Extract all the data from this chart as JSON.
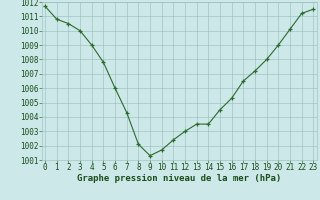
{
  "x": [
    0,
    1,
    2,
    3,
    4,
    5,
    6,
    7,
    8,
    9,
    10,
    11,
    12,
    13,
    14,
    15,
    16,
    17,
    18,
    19,
    20,
    21,
    22,
    23
  ],
  "y": [
    1011.7,
    1010.8,
    1010.5,
    1010.0,
    1009.0,
    1007.8,
    1006.0,
    1004.3,
    1002.1,
    1001.3,
    1001.7,
    1002.4,
    1003.0,
    1003.5,
    1003.5,
    1004.5,
    1005.3,
    1006.5,
    1007.2,
    1008.0,
    1009.0,
    1010.1,
    1011.2,
    1011.5
  ],
  "line_color": "#2d6a2d",
  "marker": "+",
  "marker_color": "#2d6a2d",
  "bg_color": "#cce8e8",
  "grid_color": "#99bbbb",
  "xlabel": "Graphe pression niveau de la mer (hPa)",
  "xlabel_color": "#1a4d1a",
  "tick_color": "#1a4d1a",
  "ylim": [
    1001,
    1012
  ],
  "yticks": [
    1001,
    1002,
    1003,
    1004,
    1005,
    1006,
    1007,
    1008,
    1009,
    1010,
    1011,
    1012
  ],
  "xticks": [
    0,
    1,
    2,
    3,
    4,
    5,
    6,
    7,
    8,
    9,
    10,
    11,
    12,
    13,
    14,
    15,
    16,
    17,
    18,
    19,
    20,
    21,
    22,
    23
  ],
  "xlabel_fontsize": 6.5,
  "tick_fontsize": 5.5
}
